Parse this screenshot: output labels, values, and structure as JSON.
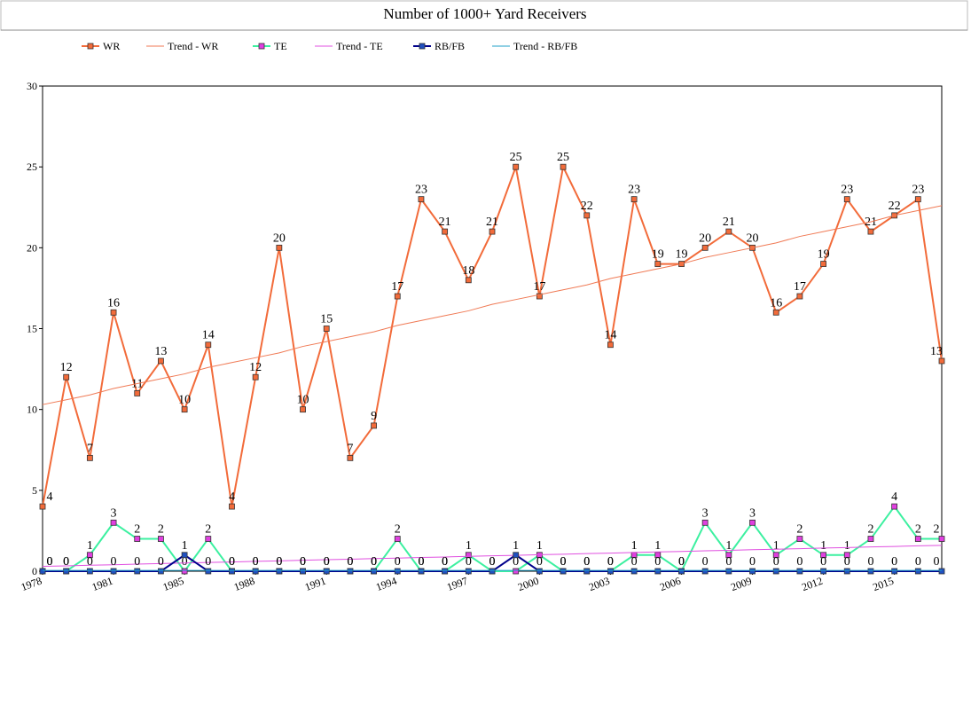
{
  "chart_data": {
    "type": "line",
    "title": "Number of 1000+ Yard Receivers",
    "categories": [
      "1978",
      null,
      null,
      "1981",
      null,
      null,
      "1985",
      null,
      null,
      "1988",
      null,
      null,
      "1991",
      null,
      null,
      "1994",
      null,
      null,
      "1997",
      null,
      null,
      "2000",
      null,
      null,
      "2003",
      null,
      null,
      "2006",
      null,
      null,
      "2009",
      null,
      null,
      "2012",
      null,
      null,
      "2015",
      null,
      null
    ],
    "ylim": [
      0,
      30
    ],
    "yticks": [
      0,
      5,
      10,
      15,
      20,
      25,
      30
    ],
    "series": [
      {
        "name": "WR",
        "color": "#f26b3a",
        "marker_color": "#f26b3a",
        "labels": true,
        "values": [
          4,
          12,
          7,
          16,
          11,
          13,
          10,
          14,
          4,
          12,
          20,
          10,
          15,
          7,
          9,
          17,
          23,
          21,
          18,
          21,
          25,
          17,
          25,
          22,
          14,
          23,
          19,
          19,
          20,
          21,
          20,
          16,
          17,
          19,
          23,
          21,
          22,
          23,
          13
        ]
      },
      {
        "name": "Trend - WR",
        "color": "#f07a55",
        "values": [
          10.3,
          10.6,
          10.9,
          11.3,
          11.6,
          11.9,
          12.2,
          12.6,
          12.9,
          13.2,
          13.5,
          13.9,
          14.2,
          14.5,
          14.8,
          15.2,
          15.5,
          15.8,
          16.1,
          16.5,
          16.8,
          17.1,
          17.4,
          17.7,
          18.1,
          18.4,
          18.7,
          19.0,
          19.4,
          19.7,
          20.0,
          20.3,
          20.7,
          21.0,
          21.3,
          21.6,
          22.0,
          22.3,
          22.6
        ]
      },
      {
        "name": "TE",
        "color": "#3cf0a0",
        "marker_color": "#e040e0",
        "labels": true,
        "values": [
          0,
          0,
          1,
          3,
          2,
          2,
          0,
          2,
          0,
          0,
          0,
          0,
          0,
          0,
          0,
          2,
          0,
          0,
          1,
          0,
          0,
          1,
          0,
          0,
          0,
          1,
          1,
          0,
          3,
          1,
          3,
          1,
          2,
          1,
          1,
          2,
          4,
          2,
          2
        ]
      },
      {
        "name": "Trend - TE",
        "color": "#e050e0",
        "values": [
          0.3,
          0.33,
          0.37,
          0.4,
          0.44,
          0.47,
          0.51,
          0.54,
          0.57,
          0.61,
          0.64,
          0.68,
          0.71,
          0.74,
          0.78,
          0.81,
          0.85,
          0.88,
          0.92,
          0.95,
          0.98,
          1.02,
          1.05,
          1.09,
          1.12,
          1.16,
          1.19,
          1.22,
          1.26,
          1.29,
          1.33,
          1.36,
          1.39,
          1.43,
          1.46,
          1.5,
          1.53,
          1.57,
          1.6
        ]
      },
      {
        "name": "RB/FB",
        "color": "#00008b",
        "marker_color": "#2050c0",
        "labels": true,
        "values": [
          0,
          0,
          0,
          0,
          0,
          0,
          1,
          0,
          0,
          0,
          0,
          0,
          0,
          0,
          0,
          0,
          0,
          0,
          0,
          0,
          1,
          0,
          0,
          0,
          0,
          0,
          0,
          0,
          0,
          0,
          0,
          0,
          0,
          0,
          0,
          0,
          0,
          0,
          0
        ]
      },
      {
        "name": "Trend - RB/FB",
        "color": "#1fa0c8",
        "values": [
          0.05,
          0.05,
          0.05,
          0.05,
          0.05,
          0.05,
          0.05,
          0.05,
          0.05,
          0.05,
          0.05,
          0.05,
          0.05,
          0.05,
          0.05,
          0.05,
          0.05,
          0.05,
          0.05,
          0.05,
          0.05,
          0.05,
          0.05,
          0.05,
          0.05,
          0.05,
          0.05,
          0.05,
          0.05,
          0.05,
          0.05,
          0.05,
          0.05,
          0.05,
          0.05,
          0.05,
          0.05,
          0.05,
          0.05
        ]
      }
    ]
  }
}
